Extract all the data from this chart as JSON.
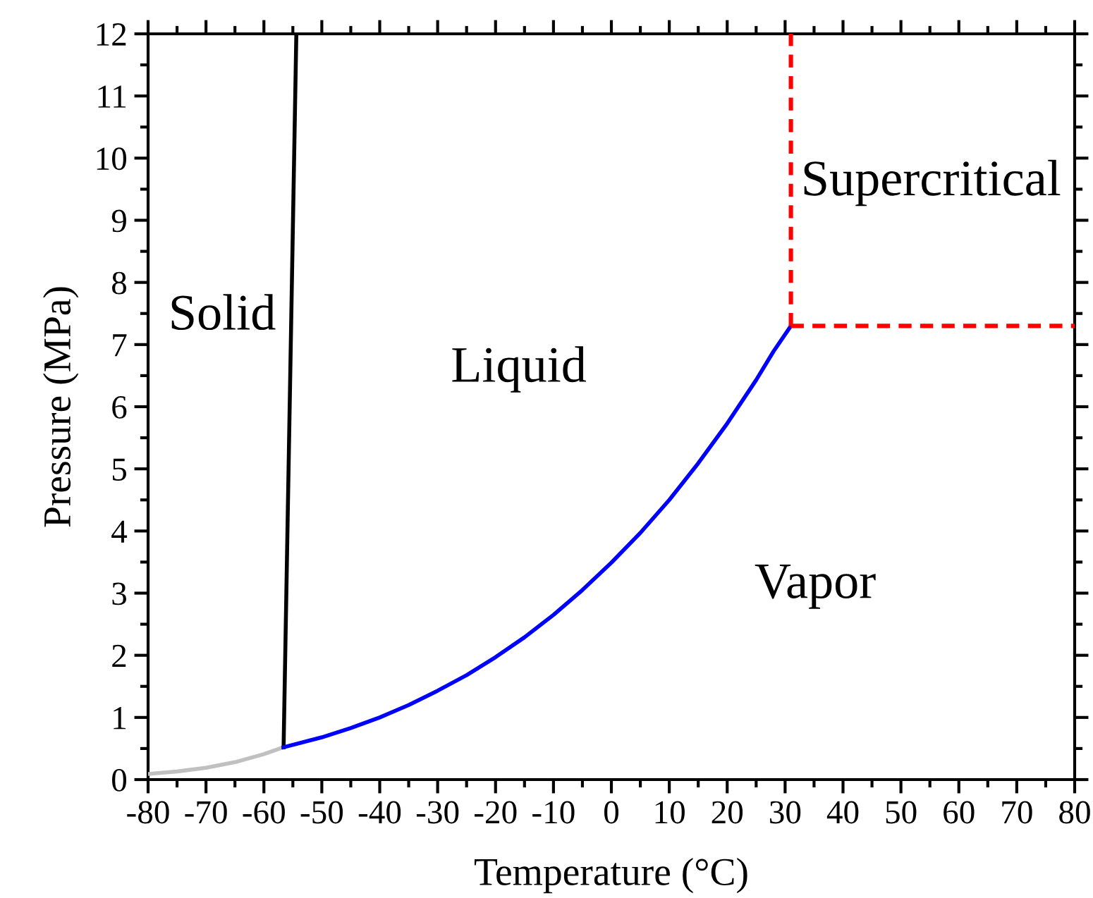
{
  "chart_data": {
    "type": "line",
    "xlabel": "Temperature (°C)",
    "ylabel": "Pressure (MPa)",
    "xlim": [
      -80,
      80
    ],
    "xticks": [
      -80,
      -70,
      -60,
      -50,
      -40,
      -30,
      -20,
      -10,
      0,
      10,
      20,
      30,
      40,
      50,
      60,
      70,
      80
    ],
    "ylim": [
      0,
      12
    ],
    "yticks": [
      0,
      1,
      2,
      3,
      4,
      5,
      6,
      7,
      8,
      9,
      10,
      11,
      12
    ],
    "grid": false,
    "legend": false,
    "marker": "none",
    "series": [
      {
        "color": "#c0c0c0",
        "line_style": "solid",
        "x": [
          -80,
          -75,
          -70,
          -65,
          -60,
          -56.6
        ],
        "values": [
          0.09,
          0.13,
          0.19,
          0.28,
          0.41,
          0.52
        ]
      },
      {
        "color": "#000000",
        "line_style": "solid",
        "x": [
          -56.6,
          -54.4
        ],
        "values": [
          0.52,
          12
        ]
      },
      {
        "color": "#0000ff",
        "line_style": "solid",
        "x": [
          -56.6,
          -50,
          -45,
          -40,
          -35,
          -30,
          -25,
          -20,
          -15,
          -10,
          -5,
          0,
          5,
          10,
          15,
          20,
          25,
          28,
          31
        ],
        "values": [
          0.52,
          0.68,
          0.83,
          1.0,
          1.2,
          1.43,
          1.68,
          1.97,
          2.29,
          2.65,
          3.05,
          3.49,
          3.97,
          4.5,
          5.09,
          5.73,
          6.43,
          6.89,
          7.3
        ]
      },
      {
        "color": "#ff0000",
        "line_style": "dashed",
        "x": [
          31,
          31
        ],
        "values": [
          7.3,
          12
        ]
      },
      {
        "color": "#ff0000",
        "line_style": "dashed",
        "x": [
          31,
          80
        ],
        "values": [
          7.3,
          7.3
        ]
      }
    ],
    "annotations": [
      "Solid",
      "Liquid",
      "Supercritical",
      "Vapor"
    ]
  }
}
